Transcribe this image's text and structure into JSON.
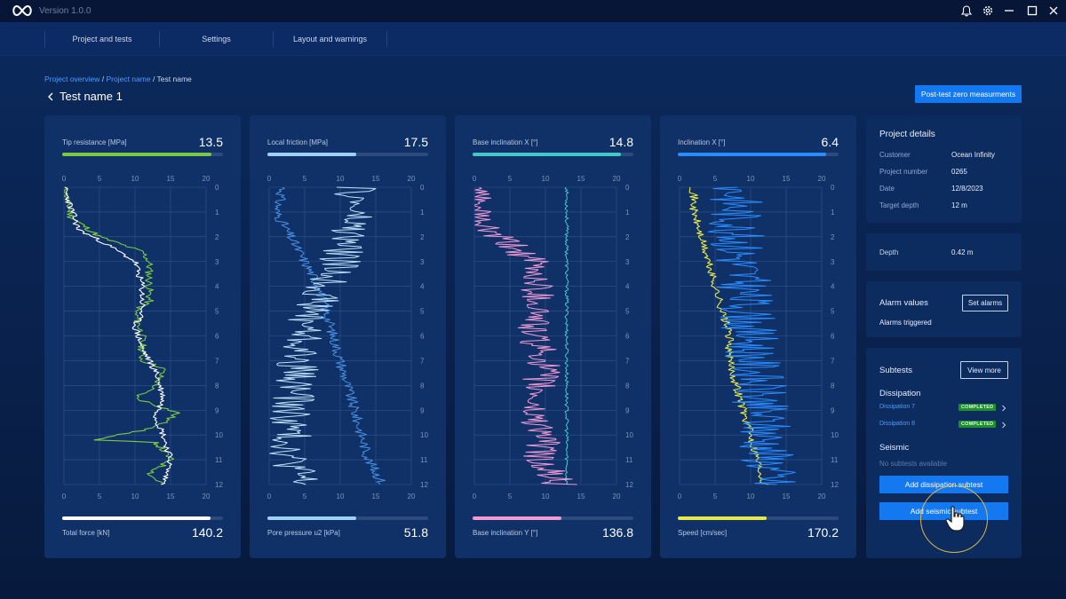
{
  "app": {
    "version": "Version 1.0.0",
    "icons": [
      "infinity-logo-icon",
      "bell-icon",
      "gear-icon",
      "minimize-icon",
      "maximize-icon",
      "close-icon"
    ]
  },
  "nav": {
    "items": [
      "Project and tests",
      "Settings",
      "Layout and warnings"
    ]
  },
  "breadcrumb": {
    "items": [
      "Project overview",
      "Project name",
      "Test name"
    ],
    "separator": "/"
  },
  "page": {
    "title": "Test name 1",
    "post_test_button": "Post-test zero measurments"
  },
  "panels": [
    {
      "top_label": "Tip resistance [MPa]",
      "top_value": "13.5",
      "top_color": "#7bc942",
      "top_fill": 0.93,
      "bottom_label": "Total force [kN]",
      "bottom_value": "140.2",
      "bottom_color": "#ffffff",
      "bottom_fill": 0.92,
      "x_ticks": [
        "0",
        "5",
        "10",
        "15",
        "20"
      ],
      "y_ticks": [
        "0",
        "1",
        "2",
        "3",
        "4",
        "5",
        "6",
        "7",
        "8",
        "9",
        "10",
        "11",
        "12"
      ]
    },
    {
      "top_label": "Local friction [MPa]",
      "top_value": "17.5",
      "top_color": "#9cd0f7",
      "top_fill": 0.55,
      "bottom_label": "Pore pressure u2 [kPa]",
      "bottom_value": "51.8",
      "bottom_color": "#9cd0f7",
      "bottom_fill": 0.55,
      "x_ticks": [
        "0",
        "5",
        "10",
        "15",
        "20"
      ],
      "y_ticks": [
        "0",
        "1",
        "2",
        "3",
        "4",
        "5",
        "6",
        "7",
        "8",
        "9",
        "10",
        "11",
        "12"
      ]
    },
    {
      "top_label": "Base inclination X [°]",
      "top_value": "14.8",
      "top_color": "#45c7c7",
      "top_fill": 0.92,
      "bottom_label": "Base inclination Y [°]",
      "bottom_value": "136.8",
      "bottom_color": "#f29ad4",
      "bottom_fill": 0.55,
      "x_ticks": [
        "0",
        "5",
        "10",
        "15",
        "20"
      ],
      "y_ticks": [
        "0",
        "1",
        "2",
        "3",
        "4",
        "5",
        "6",
        "7",
        "8",
        "9",
        "10",
        "11",
        "12"
      ]
    },
    {
      "top_label": "Inclination  X [°]",
      "top_value": "6.4",
      "top_color": "#2a8cff",
      "top_fill": 0.92,
      "bottom_label": "Speed [cm/sec]",
      "bottom_value": "170.2",
      "bottom_color": "#e8e84a",
      "bottom_fill": 0.55,
      "x_ticks": [
        "0",
        "5",
        "10",
        "15",
        "20"
      ],
      "y_ticks": [
        "0",
        "1",
        "2",
        "3",
        "4",
        "5",
        "6",
        "7",
        "8",
        "9",
        "10",
        "11",
        "12"
      ]
    }
  ],
  "project_details": {
    "title": "Project details",
    "rows": [
      {
        "key": "Customer",
        "value": "Ocean Infinity"
      },
      {
        "key": "Project number",
        "value": "0265"
      },
      {
        "key": "Date",
        "value": "12/8/2023"
      },
      {
        "key": "Target depth",
        "value": "12 m"
      }
    ]
  },
  "depth": {
    "key": "Depth",
    "value": "0.42 m"
  },
  "alarms": {
    "title": "Alarm values",
    "button": "Set alarms",
    "status": "Alarms triggered"
  },
  "subtests": {
    "title": "Subtests",
    "view_more": "View more",
    "dissipation_title": "Dissipation",
    "dissipation_items": [
      {
        "name": "Dissipation 7",
        "status": "COMPLETED"
      },
      {
        "name": "Dissipation 8",
        "status": "COMPLETED"
      }
    ],
    "seismic_title": "Seismic",
    "seismic_empty": "No subtests available",
    "add_dissipation": "Add dissipation subtest",
    "add_seismic": "Add seismic subtest"
  }
}
